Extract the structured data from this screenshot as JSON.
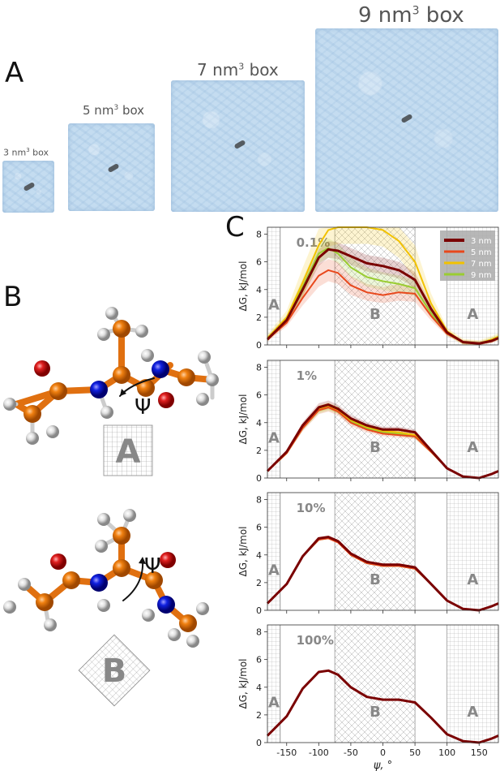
{
  "panel_a": {
    "letter": "A",
    "boxes": [
      {
        "pre": "3 nm",
        "sup": "3",
        "post": " box"
      },
      {
        "pre": "5 nm",
        "sup": "3",
        "post": " box"
      },
      {
        "pre": "7 nm",
        "sup": "3",
        "post": " box"
      },
      {
        "pre": "9 nm",
        "sup": "3",
        "post": " box"
      }
    ]
  },
  "panel_b": {
    "letter": "B",
    "torsion_symbol": "Ψ",
    "region_a_label": "A",
    "region_b_label": "B"
  },
  "panel_c": {
    "letter": "C",
    "ylabel": "ΔG, kJ/mol",
    "xlabel": "ψ, °",
    "region_labels": {
      "a": "A",
      "b": "B"
    },
    "colors": {
      "3 nm": "#7a0000",
      "5 nm": "#e8481c",
      "7 nm": "#f2c200",
      "9 nm": "#9acd32"
    }
  },
  "chart_data": [
    {
      "type": "line",
      "annotation": "0.1%",
      "xlabel": "ψ, °",
      "ylabel": "ΔG, kJ/mol",
      "xlim": [
        -180,
        180
      ],
      "ylim": [
        0,
        8.5
      ],
      "xticks": [
        -150,
        -100,
        -50,
        0,
        50,
        100,
        150
      ],
      "yticks": [
        0,
        2,
        4,
        6,
        8
      ],
      "legend_position": "top-right",
      "x": [
        -180,
        -150,
        -125,
        -100,
        -85,
        -70,
        -50,
        -25,
        0,
        25,
        50,
        75,
        100,
        125,
        150,
        170,
        180
      ],
      "series": [
        {
          "name": "3 nm",
          "values": [
            0.4,
            1.8,
            4.0,
            6.3,
            6.9,
            6.8,
            6.4,
            5.9,
            5.7,
            5.4,
            4.7,
            2.6,
            0.9,
            0.2,
            0.1,
            0.3,
            0.5
          ]
        },
        {
          "name": "5 nm",
          "values": [
            0.4,
            1.6,
            3.4,
            5.0,
            5.4,
            5.2,
            4.3,
            3.8,
            3.6,
            3.8,
            3.7,
            2.1,
            0.8,
            0.2,
            0.1,
            0.3,
            0.5
          ]
        },
        {
          "name": "7 nm",
          "values": [
            0.5,
            2.0,
            4.5,
            7.2,
            8.3,
            8.5,
            8.5,
            8.5,
            8.3,
            7.5,
            6.0,
            3.0,
            1.0,
            0.2,
            0.1,
            0.4,
            0.6
          ]
        },
        {
          "name": "9 nm",
          "values": [
            0.5,
            1.9,
            4.2,
            6.6,
            7.0,
            6.6,
            5.6,
            4.9,
            4.6,
            4.4,
            4.1,
            2.3,
            0.8,
            0.2,
            0.1,
            0.4,
            0.6
          ]
        }
      ]
    },
    {
      "type": "line",
      "annotation": "1%",
      "xlabel": "ψ, °",
      "ylabel": "ΔG, kJ/mol",
      "xlim": [
        -180,
        180
      ],
      "ylim": [
        0,
        8.5
      ],
      "xticks": [
        -150,
        -100,
        -50,
        0,
        50,
        100,
        150
      ],
      "yticks": [
        0,
        2,
        4,
        6,
        8
      ],
      "x": [
        -180,
        -150,
        -125,
        -100,
        -85,
        -70,
        -50,
        -25,
        0,
        25,
        50,
        75,
        100,
        125,
        150,
        170,
        180
      ],
      "series": [
        {
          "name": "3 nm",
          "values": [
            0.5,
            1.9,
            3.8,
            5.1,
            5.3,
            5.0,
            4.3,
            3.8,
            3.5,
            3.5,
            3.3,
            2.0,
            0.7,
            0.1,
            0.0,
            0.3,
            0.5
          ]
        },
        {
          "name": "5 nm",
          "values": [
            0.5,
            1.8,
            3.6,
            4.9,
            5.1,
            4.8,
            4.0,
            3.5,
            3.2,
            3.1,
            3.0,
            1.9,
            0.7,
            0.1,
            0.0,
            0.3,
            0.5
          ]
        },
        {
          "name": "7 nm",
          "values": [
            0.5,
            1.8,
            3.7,
            5.0,
            5.2,
            4.9,
            4.2,
            3.7,
            3.4,
            3.3,
            3.1,
            1.9,
            0.7,
            0.1,
            0.0,
            0.3,
            0.5
          ]
        },
        {
          "name": "9 nm",
          "values": [
            0.5,
            1.8,
            3.6,
            4.9,
            5.1,
            4.9,
            4.1,
            3.6,
            3.3,
            3.2,
            3.0,
            1.9,
            0.7,
            0.1,
            0.0,
            0.3,
            0.5
          ]
        }
      ]
    },
    {
      "type": "line",
      "annotation": "10%",
      "xlabel": "ψ, °",
      "ylabel": "ΔG, kJ/mol",
      "xlim": [
        -180,
        180
      ],
      "ylim": [
        0,
        8.5
      ],
      "xticks": [
        -150,
        -100,
        -50,
        0,
        50,
        100,
        150
      ],
      "yticks": [
        0,
        2,
        4,
        6,
        8
      ],
      "x": [
        -180,
        -150,
        -125,
        -100,
        -85,
        -70,
        -50,
        -25,
        0,
        25,
        50,
        75,
        100,
        125,
        150,
        170,
        180
      ],
      "series": [
        {
          "name": "3 nm",
          "values": [
            0.5,
            1.9,
            3.9,
            5.2,
            5.3,
            5.0,
            4.1,
            3.5,
            3.3,
            3.3,
            3.1,
            1.9,
            0.7,
            0.1,
            0.0,
            0.3,
            0.5
          ]
        },
        {
          "name": "5 nm",
          "values": [
            0.5,
            1.9,
            3.9,
            5.1,
            5.2,
            4.9,
            4.0,
            3.4,
            3.2,
            3.2,
            3.0,
            1.9,
            0.7,
            0.1,
            0.0,
            0.3,
            0.5
          ]
        },
        {
          "name": "7 nm",
          "values": [
            0.5,
            1.9,
            3.9,
            5.2,
            5.3,
            5.0,
            4.1,
            3.5,
            3.3,
            3.3,
            3.1,
            1.9,
            0.7,
            0.1,
            0.0,
            0.3,
            0.5
          ]
        },
        {
          "name": "9 nm",
          "values": [
            0.5,
            1.9,
            3.9,
            5.1,
            5.2,
            5.0,
            4.0,
            3.4,
            3.2,
            3.2,
            3.0,
            1.9,
            0.7,
            0.1,
            0.0,
            0.3,
            0.5
          ]
        }
      ]
    },
    {
      "type": "line",
      "annotation": "100%",
      "xlabel": "ψ, °",
      "ylabel": "ΔG, kJ/mol",
      "xlim": [
        -180,
        180
      ],
      "ylim": [
        0,
        8.5
      ],
      "xticks": [
        -150,
        -100,
        -50,
        0,
        50,
        100,
        150
      ],
      "yticks": [
        0,
        2,
        4,
        6,
        8
      ],
      "x": [
        -180,
        -150,
        -125,
        -100,
        -85,
        -70,
        -50,
        -25,
        0,
        25,
        50,
        75,
        100,
        125,
        150,
        170,
        180
      ],
      "series": [
        {
          "name": "3 nm",
          "values": [
            0.5,
            1.9,
            3.9,
            5.1,
            5.2,
            4.9,
            4.0,
            3.3,
            3.1,
            3.1,
            2.9,
            1.8,
            0.6,
            0.1,
            0.0,
            0.3,
            0.5
          ]
        },
        {
          "name": "5 nm",
          "values": [
            0.5,
            1.9,
            3.9,
            5.1,
            5.2,
            4.9,
            4.0,
            3.3,
            3.1,
            3.1,
            2.9,
            1.8,
            0.6,
            0.1,
            0.0,
            0.3,
            0.5
          ]
        },
        {
          "name": "7 nm",
          "values": [
            0.5,
            1.9,
            3.9,
            5.1,
            5.2,
            4.9,
            4.0,
            3.3,
            3.1,
            3.1,
            2.9,
            1.8,
            0.6,
            0.1,
            0.0,
            0.3,
            0.5
          ]
        },
        {
          "name": "9 nm",
          "values": [
            0.5,
            1.9,
            3.9,
            5.1,
            5.2,
            4.9,
            4.0,
            3.3,
            3.1,
            3.1,
            2.9,
            1.8,
            0.6,
            0.1,
            0.0,
            0.3,
            0.5
          ]
        }
      ]
    }
  ]
}
